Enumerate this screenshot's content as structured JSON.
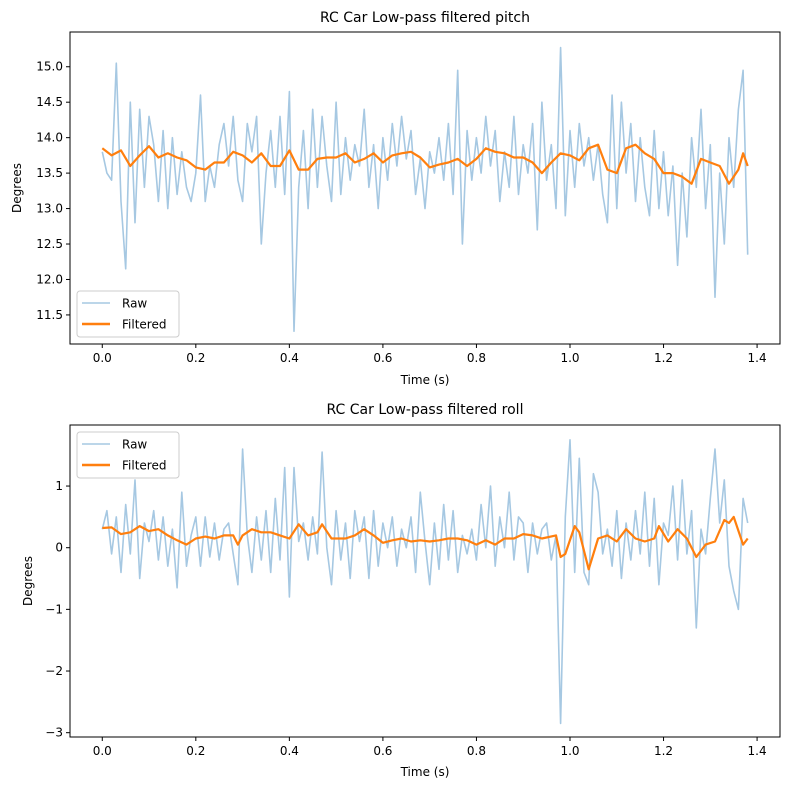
{
  "chart_data": [
    {
      "type": "line",
      "title": "RC Car Low-pass filtered pitch",
      "xlabel": "Time (s)",
      "ylabel": "Degrees",
      "xlim": [
        -0.069,
        1.449
      ],
      "ylim": [
        11.09,
        15.49
      ],
      "xticks": [
        0.0,
        0.2,
        0.4,
        0.6,
        0.8,
        1.0,
        1.2,
        1.4
      ],
      "xtick_labels": [
        "0.0",
        "0.2",
        "0.4",
        "0.6",
        "0.8",
        "1.0",
        "1.2",
        "1.4"
      ],
      "yticks": [
        11.5,
        12.0,
        12.5,
        13.0,
        13.5,
        14.0,
        14.5,
        15.0
      ],
      "ytick_labels": [
        "11.5",
        "12.0",
        "12.5",
        "13.0",
        "13.5",
        "14.0",
        "14.5",
        "15.0"
      ],
      "grid": false,
      "legend_placement": "lower-left",
      "series": [
        {
          "name": "Raw",
          "color": "#a6c8e2",
          "x_start": 0.0,
          "x_step": 0.01,
          "values": [
            13.8,
            13.5,
            13.4,
            15.05,
            13.1,
            12.15,
            14.5,
            12.8,
            14.4,
            13.3,
            14.3,
            13.9,
            13.1,
            14.1,
            13.0,
            14.0,
            13.2,
            13.8,
            13.3,
            13.1,
            13.5,
            14.6,
            13.1,
            13.6,
            13.3,
            13.9,
            14.2,
            13.6,
            14.3,
            13.4,
            13.1,
            14.2,
            13.8,
            14.3,
            12.5,
            13.5,
            14.1,
            13.3,
            14.3,
            13.2,
            14.65,
            11.27,
            13.3,
            14.1,
            13.0,
            14.4,
            13.3,
            14.3,
            13.6,
            13.1,
            14.5,
            13.2,
            14.0,
            13.4,
            13.9,
            13.6,
            14.4,
            13.3,
            13.9,
            13.0,
            14.0,
            13.4,
            14.2,
            13.6,
            14.3,
            13.7,
            14.1,
            13.2,
            13.7,
            13.0,
            13.8,
            13.5,
            14.0,
            13.4,
            14.2,
            13.2,
            14.95,
            12.5,
            14.1,
            13.4,
            14.0,
            13.5,
            14.3,
            13.6,
            14.1,
            13.1,
            13.8,
            13.3,
            14.3,
            13.2,
            13.9,
            13.5,
            14.2,
            12.7,
            14.5,
            13.4,
            13.9,
            13.0,
            15.27,
            12.9,
            14.1,
            13.3,
            14.2,
            13.6,
            14.0,
            13.4,
            13.9,
            13.2,
            12.8,
            14.6,
            13.0,
            14.5,
            13.5,
            14.2,
            13.1,
            14.0,
            13.3,
            12.9,
            14.1,
            13.0,
            13.8,
            12.9,
            13.6,
            12.2,
            13.5,
            12.6,
            14.0,
            13.3,
            14.4,
            13.0,
            13.9,
            11.75,
            13.5,
            12.5,
            14.0,
            13.3,
            14.4,
            14.95,
            12.35
          ]
        },
        {
          "name": "Filtered",
          "color": "#ff7f0e",
          "x": [
            0.0,
            0.02,
            0.04,
            0.06,
            0.08,
            0.1,
            0.12,
            0.14,
            0.16,
            0.18,
            0.2,
            0.22,
            0.24,
            0.26,
            0.28,
            0.3,
            0.32,
            0.34,
            0.36,
            0.38,
            0.4,
            0.42,
            0.44,
            0.46,
            0.48,
            0.5,
            0.52,
            0.54,
            0.56,
            0.58,
            0.6,
            0.62,
            0.64,
            0.66,
            0.68,
            0.7,
            0.72,
            0.74,
            0.76,
            0.78,
            0.8,
            0.82,
            0.84,
            0.86,
            0.88,
            0.9,
            0.92,
            0.94,
            0.96,
            0.98,
            1.0,
            1.02,
            1.04,
            1.06,
            1.08,
            1.1,
            1.12,
            1.14,
            1.16,
            1.18,
            1.2,
            1.22,
            1.24,
            1.26,
            1.28,
            1.3,
            1.32,
            1.34,
            1.36,
            1.37,
            1.38
          ],
          "values": [
            13.85,
            13.75,
            13.82,
            13.6,
            13.75,
            13.88,
            13.72,
            13.78,
            13.72,
            13.68,
            13.58,
            13.55,
            13.65,
            13.65,
            13.8,
            13.75,
            13.65,
            13.78,
            13.6,
            13.6,
            13.82,
            13.55,
            13.55,
            13.7,
            13.72,
            13.72,
            13.78,
            13.65,
            13.7,
            13.78,
            13.65,
            13.75,
            13.78,
            13.8,
            13.72,
            13.58,
            13.62,
            13.65,
            13.7,
            13.6,
            13.7,
            13.85,
            13.8,
            13.78,
            13.72,
            13.72,
            13.65,
            13.5,
            13.65,
            13.78,
            13.75,
            13.68,
            13.85,
            13.9,
            13.55,
            13.5,
            13.85,
            13.9,
            13.78,
            13.7,
            13.5,
            13.5,
            13.45,
            13.35,
            13.7,
            13.65,
            13.6,
            13.35,
            13.55,
            13.78,
            13.6
          ]
        }
      ]
    },
    {
      "type": "line",
      "title": "RC Car Low-pass filtered roll",
      "xlabel": "Time (s)",
      "ylabel": "Degrees",
      "xlim": [
        -0.069,
        1.449
      ],
      "ylim": [
        -3.07,
        1.99
      ],
      "xticks": [
        0.0,
        0.2,
        0.4,
        0.6,
        0.8,
        1.0,
        1.2,
        1.4
      ],
      "xtick_labels": [
        "0.0",
        "0.2",
        "0.4",
        "0.6",
        "0.8",
        "1.0",
        "1.2",
        "1.4"
      ],
      "yticks": [
        -3,
        -2,
        -1,
        0,
        1
      ],
      "ytick_labels": [
        "−3",
        "−2",
        "−1",
        "0",
        "1"
      ],
      "grid": false,
      "legend_placement": "upper-left",
      "series": [
        {
          "name": "Raw",
          "color": "#a6c8e2",
          "x_start": 0.0,
          "x_step": 0.01,
          "values": [
            0.3,
            0.6,
            -0.1,
            0.5,
            -0.4,
            0.7,
            -0.1,
            1.1,
            -0.5,
            0.4,
            0.1,
            0.6,
            -0.2,
            0.5,
            -0.3,
            0.3,
            -0.65,
            0.9,
            -0.3,
            0.2,
            0.5,
            -0.3,
            0.5,
            -0.15,
            0.4,
            -0.2,
            0.3,
            0.4,
            -0.1,
            -0.6,
            1.6,
            0.2,
            -0.4,
            0.5,
            -0.2,
            0.6,
            -0.4,
            0.8,
            -0.2,
            1.3,
            -0.8,
            1.3,
            0.1,
            0.4,
            -0.2,
            0.5,
            -0.1,
            1.55,
            0.0,
            -0.6,
            0.6,
            -0.2,
            0.4,
            -0.5,
            0.6,
            0.1,
            0.5,
            -0.5,
            0.6,
            -0.3,
            0.4,
            0.0,
            0.5,
            -0.3,
            0.3,
            0.0,
            0.5,
            -0.4,
            0.9,
            0.1,
            -0.6,
            0.4,
            -0.35,
            0.7,
            -0.2,
            0.6,
            -0.4,
            0.2,
            -0.1,
            0.3,
            -0.2,
            0.7,
            0.0,
            1.0,
            -0.3,
            0.5,
            0.0,
            0.9,
            -0.2,
            0.5,
            0.4,
            -0.4,
            0.4,
            -0.1,
            0.3,
            0.4,
            -0.2,
            0.2,
            -2.85,
            0.5,
            1.75,
            -0.4,
            1.45,
            -0.4,
            -0.6,
            1.2,
            0.9,
            -0.1,
            0.3,
            -0.3,
            0.6,
            -0.5,
            0.4,
            -0.2,
            0.6,
            -0.1,
            0.9,
            -0.3,
            0.8,
            -0.6,
            0.4,
            0.2,
            1.0,
            -0.2,
            1.1,
            -0.1,
            0.6,
            -1.3,
            0.3,
            -0.1,
            0.8,
            1.6,
            0.4,
            1.1,
            -0.3,
            -0.7,
            -1.0,
            0.8,
            0.4
          ]
        },
        {
          "name": "Filtered",
          "color": "#ff7f0e",
          "x": [
            0.0,
            0.02,
            0.04,
            0.06,
            0.08,
            0.1,
            0.12,
            0.14,
            0.16,
            0.18,
            0.2,
            0.22,
            0.24,
            0.26,
            0.28,
            0.29,
            0.3,
            0.32,
            0.34,
            0.36,
            0.38,
            0.4,
            0.42,
            0.44,
            0.46,
            0.47,
            0.49,
            0.52,
            0.54,
            0.56,
            0.58,
            0.6,
            0.62,
            0.64,
            0.66,
            0.68,
            0.7,
            0.72,
            0.74,
            0.76,
            0.78,
            0.8,
            0.82,
            0.84,
            0.86,
            0.88,
            0.9,
            0.92,
            0.94,
            0.97,
            0.98,
            0.99,
            1.01,
            1.02,
            1.04,
            1.06,
            1.08,
            1.1,
            1.12,
            1.14,
            1.16,
            1.18,
            1.19,
            1.21,
            1.23,
            1.25,
            1.27,
            1.29,
            1.31,
            1.33,
            1.34,
            1.35,
            1.37,
            1.38
          ],
          "values": [
            0.32,
            0.33,
            0.22,
            0.25,
            0.35,
            0.27,
            0.3,
            0.2,
            0.12,
            0.05,
            0.15,
            0.18,
            0.15,
            0.2,
            0.2,
            0.05,
            0.2,
            0.3,
            0.25,
            0.25,
            0.2,
            0.15,
            0.38,
            0.2,
            0.25,
            0.38,
            0.15,
            0.15,
            0.2,
            0.3,
            0.2,
            0.08,
            0.12,
            0.15,
            0.1,
            0.12,
            0.1,
            0.12,
            0.15,
            0.15,
            0.12,
            0.05,
            0.12,
            0.05,
            0.15,
            0.15,
            0.22,
            0.2,
            0.15,
            0.2,
            -0.15,
            -0.1,
            0.35,
            0.25,
            -0.35,
            0.15,
            0.2,
            0.1,
            0.3,
            0.15,
            0.1,
            0.15,
            0.35,
            0.1,
            0.3,
            0.15,
            -0.15,
            0.05,
            0.1,
            0.45,
            0.4,
            0.5,
            0.05,
            0.15
          ]
        }
      ]
    }
  ]
}
